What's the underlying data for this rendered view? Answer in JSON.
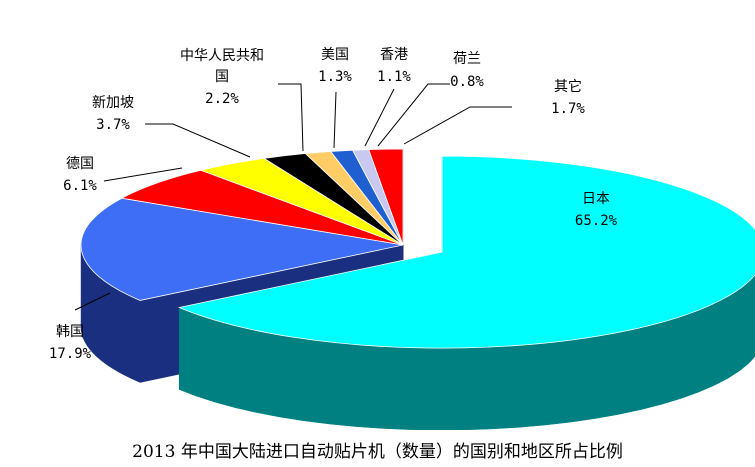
{
  "chart_data": {
    "type": "pie",
    "title": "2013 年中国大陆进口自动贴片机（数量）的国别和地区所占比例",
    "slices": [
      {
        "label": "日本",
        "value_text": "65.2%",
        "value": 65.2,
        "color": "#00FFFF",
        "side": "#008080"
      },
      {
        "label": "韩国",
        "value_text": "17.9%",
        "value": 17.9,
        "color": "#3D6EF5",
        "side": "#1B2F80"
      },
      {
        "label": "德国",
        "value_text": "6.1%",
        "value": 6.1,
        "color": "#FF0000",
        "side": "#7F0000"
      },
      {
        "label": "新加坡",
        "value_text": "3.7%",
        "value": 3.7,
        "color": "#FFFF00",
        "side": "#808000"
      },
      {
        "label": "中华人民共和国",
        "value_text": "2.2%",
        "value": 2.2,
        "color": "#000000",
        "side": "#000000"
      },
      {
        "label": "美国",
        "value_text": "1.3%",
        "value": 1.3,
        "color": "#FFCC66",
        "side": "#806633"
      },
      {
        "label": "香港",
        "value_text": "1.1%",
        "value": 1.1,
        "color": "#1F5FD0",
        "side": "#10306A"
      },
      {
        "label": "荷兰",
        "value_text": "0.8%",
        "value": 0.8,
        "color": "#C8C8F0",
        "side": "#646478"
      },
      {
        "label": "其它",
        "value_text": "1.7%",
        "value": 1.7,
        "color": "#FF0000",
        "side": "#7F0000"
      }
    ],
    "exploded": [
      "日本"
    ],
    "legend": "none"
  }
}
